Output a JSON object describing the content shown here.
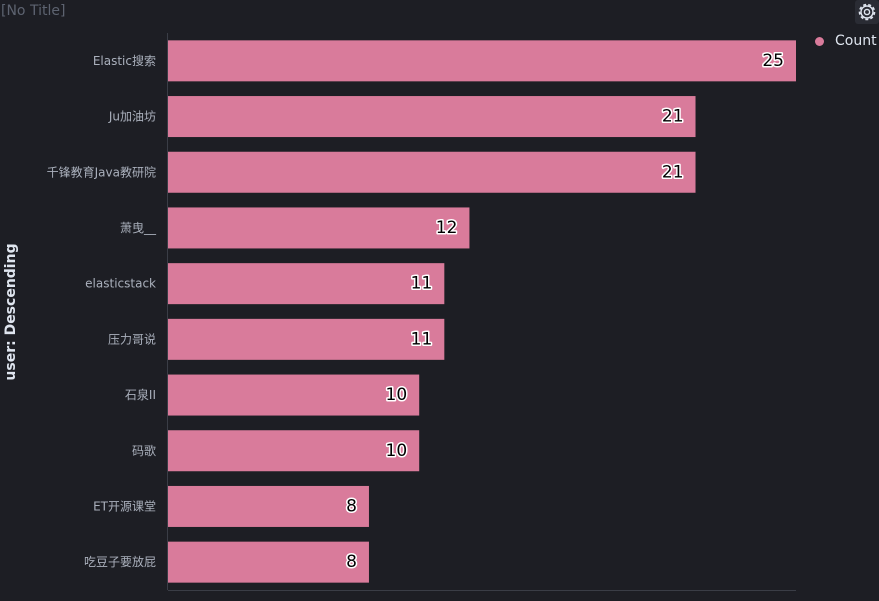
{
  "panel": {
    "title": "[No Title]",
    "settings_icon": "gear-icon"
  },
  "chart_data": {
    "type": "bar",
    "orientation": "horizontal",
    "categories": [
      "Elastic搜索",
      "Ju加油坊",
      "千锋教育Java教研院",
      "萧曳__",
      "elasticstack",
      "压力哥说",
      "石泉II",
      "码歌",
      "ET开源课堂",
      "吃豆子要放屁"
    ],
    "series": [
      {
        "name": "Count",
        "values": [
          25,
          21,
          21,
          12,
          11,
          11,
          10,
          10,
          8,
          8
        ],
        "color": "#d97b9b"
      }
    ],
    "ylabel": "user: Descending",
    "xlim": [
      0,
      25
    ],
    "legend_position": "top-right",
    "grid": false,
    "data_labels": true
  }
}
